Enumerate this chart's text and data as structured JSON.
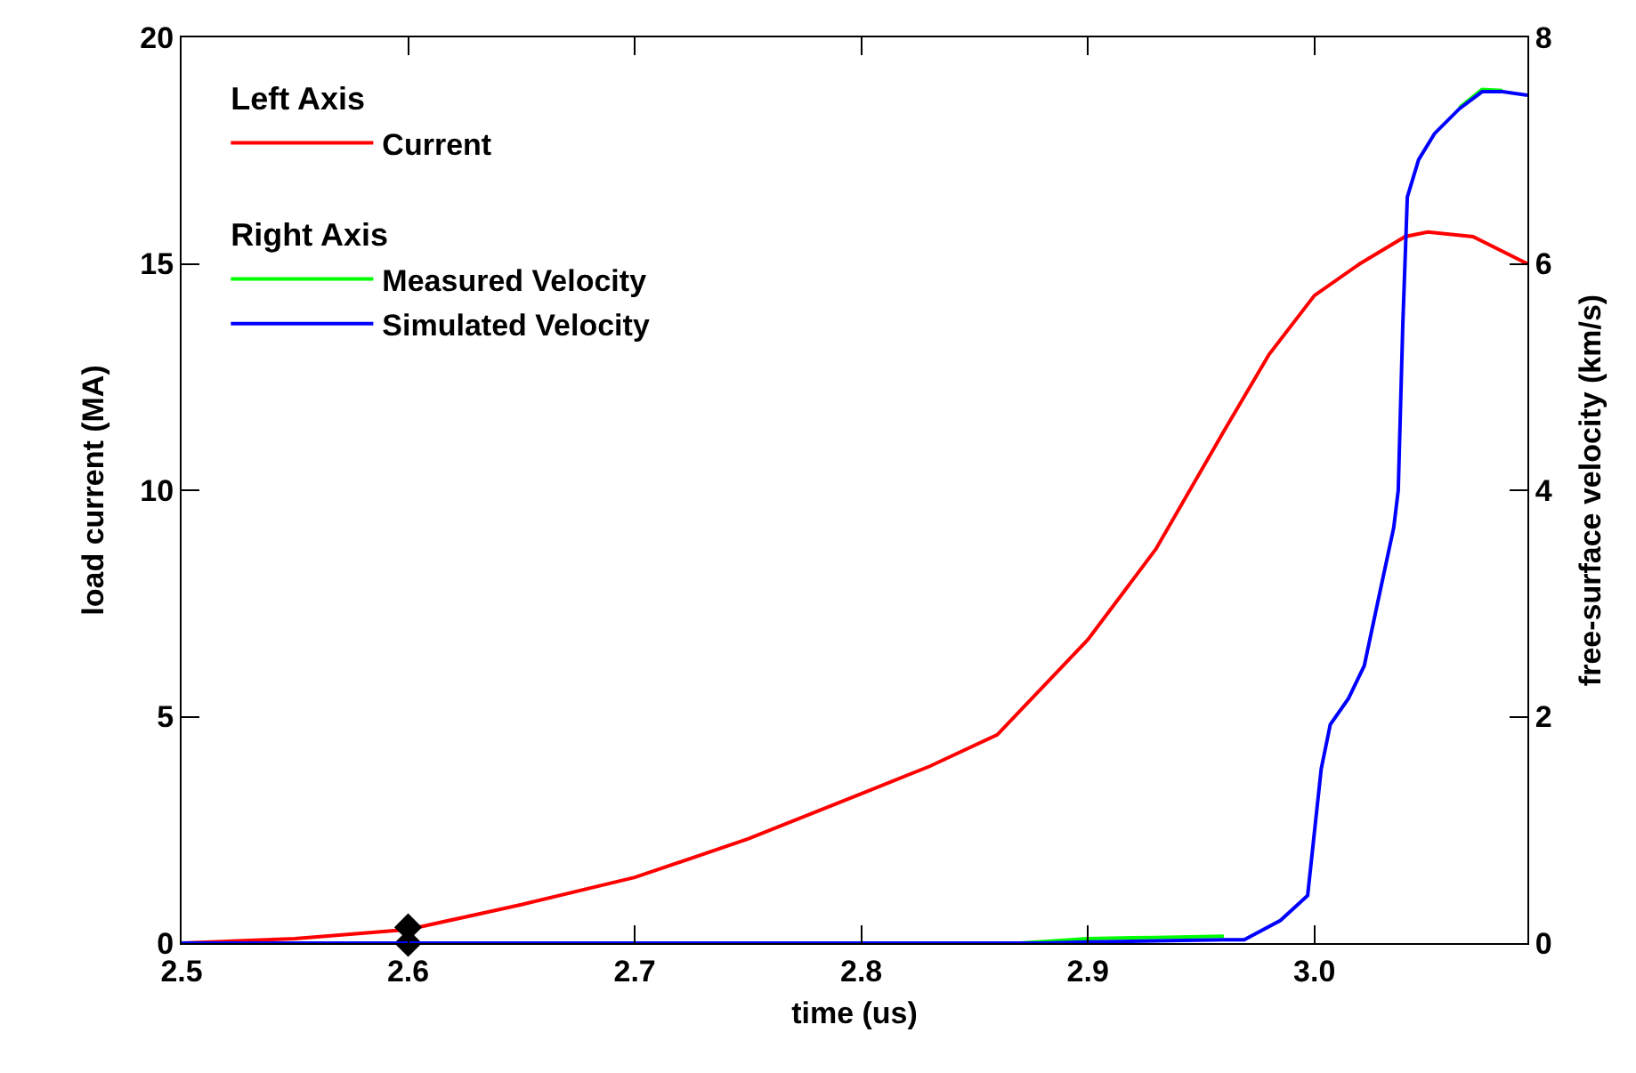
{
  "chart_data": {
    "type": "line",
    "xlabel": "time (us)",
    "ylabel": "load current (MA)",
    "y2label": "free-surface velocity (km/s)",
    "annotations": [
      "Left Axis",
      "Right Axis"
    ],
    "xlim": [
      2.5,
      3.094
    ],
    "xticks": [
      2.5,
      2.6,
      2.7,
      2.8,
      2.9,
      {
        "value": 3.0,
        "label": "3.0"
      }
    ],
    "ylim": [
      0,
      20
    ],
    "yticks": [
      0,
      5,
      10,
      15,
      20
    ],
    "y2lim": [
      0,
      8
    ],
    "y2ticks": [
      0,
      2,
      4,
      6,
      8
    ],
    "legend": "top left",
    "line_style": "solid",
    "series": [
      {
        "name": "Current",
        "color": "#ff0000",
        "axis": "y",
        "x": [
          2.5,
          2.55,
          2.6,
          2.65,
          2.7,
          2.75,
          2.8,
          2.83,
          2.86,
          2.9,
          2.93,
          2.96,
          2.98,
          3.0,
          3.02,
          3.04,
          3.05,
          3.07,
          3.094
        ],
        "values": [
          0.0,
          0.1,
          0.3,
          0.85,
          1.45,
          2.3,
          3.3,
          3.9,
          4.6,
          6.7,
          8.7,
          11.3,
          13.0,
          14.3,
          15.0,
          15.6,
          15.7,
          15.6,
          15.0
        ]
      },
      {
        "name": "Measured Velocity",
        "color": "#00ff00",
        "axis": "y2",
        "x": [
          2.87,
          2.9,
          2.93,
          2.96,
          2.969,
          3.064,
          3.074,
          3.083
        ],
        "values": [
          0.0,
          0.04,
          0.05,
          0.06,
          null,
          7.38,
          7.54,
          7.53
        ]
      },
      {
        "name": "Simulated Velocity",
        "color": "#0000ff",
        "axis": "y2",
        "x": [
          2.5,
          2.88,
          2.9,
          2.93,
          2.96,
          2.969,
          2.985,
          2.997,
          3.0,
          3.003,
          3.007,
          3.015,
          3.022,
          3.029,
          3.035,
          3.037,
          3.039,
          3.041,
          3.046,
          3.053,
          3.064,
          3.074,
          3.083,
          3.094
        ],
        "values": [
          0.0,
          0.0,
          0.01,
          0.02,
          0.03,
          0.03,
          0.2,
          0.42,
          0.98,
          1.54,
          1.93,
          2.16,
          2.45,
          3.11,
          3.67,
          4.0,
          5.46,
          6.59,
          6.92,
          7.15,
          7.37,
          7.52,
          7.52,
          7.49
        ]
      },
      {
        "type": "scatter",
        "color": "#000000",
        "marker": "diamond",
        "axis": "y",
        "x": [
          2.6,
          2.6
        ],
        "values": [
          0.35,
          0.0
        ]
      }
    ]
  }
}
